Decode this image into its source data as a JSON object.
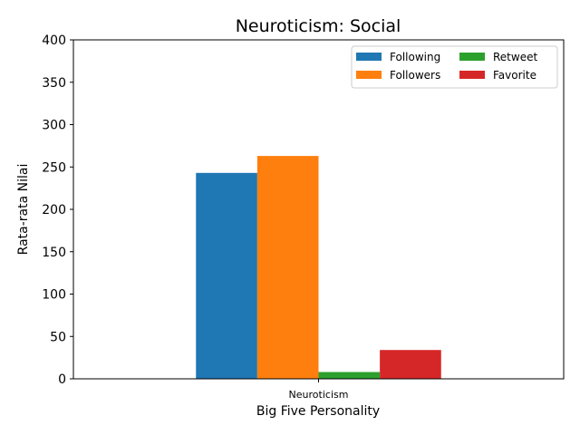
{
  "chart_data": {
    "type": "bar",
    "title": "Neuroticism: Social",
    "xlabel": "Big Five Personality",
    "ylabel": "Rata-rata Nilai",
    "categories": [
      "Neuroticism"
    ],
    "series": [
      {
        "name": "Following",
        "values": [
          243
        ],
        "color": "#1f77b4"
      },
      {
        "name": "Followers",
        "values": [
          263
        ],
        "color": "#ff7f0e"
      },
      {
        "name": "Retweet",
        "values": [
          8
        ],
        "color": "#2ca02c"
      },
      {
        "name": "Favorite",
        "values": [
          34
        ],
        "color": "#d62728"
      }
    ],
    "ylim": [
      0,
      400
    ],
    "yticks": [
      "0",
      "50",
      "100",
      "150",
      "200",
      "250",
      "300",
      "350",
      "400"
    ],
    "grid": false,
    "legend_placement": "top-right",
    "legend_columns": 2
  }
}
